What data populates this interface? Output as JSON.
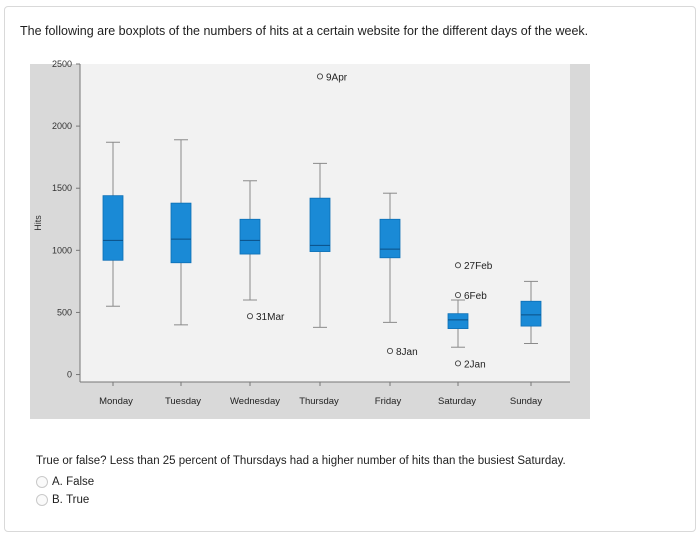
{
  "question": {
    "text": "The following are boxplots of the numbers of hits at a certain website for the different days of the week.",
    "prompt": "True or false? Less than 25 percent of Thursdays had a higher number of hits than the busiest Saturday.",
    "options": [
      {
        "letter": "A.",
        "label": "False"
      },
      {
        "letter": "B.",
        "label": "True"
      }
    ]
  },
  "chart_data": {
    "type": "boxplot",
    "ylabel": "Hits",
    "xlabel": "",
    "ylim": [
      -60,
      2500
    ],
    "yticks": [
      0,
      500,
      1000,
      1500,
      2000,
      2500
    ],
    "ytick_labels": [
      "0",
      "500",
      "1000",
      "1500",
      "2000",
      "2500"
    ],
    "categories": [
      "Monday",
      "Tuesday",
      "Wednesday",
      "Thursday",
      "Friday",
      "Saturday",
      "Sunday"
    ],
    "boxes": [
      {
        "day": "Monday",
        "whisker_low": 550,
        "q1": 920,
        "median": 1080,
        "q3": 1440,
        "whisker_high": 1870
      },
      {
        "day": "Tuesday",
        "whisker_low": 400,
        "q1": 900,
        "median": 1090,
        "q3": 1380,
        "whisker_high": 1890
      },
      {
        "day": "Wednesday",
        "whisker_low": 600,
        "q1": 970,
        "median": 1080,
        "q3": 1250,
        "whisker_high": 1560
      },
      {
        "day": "Thursday",
        "whisker_low": 380,
        "q1": 990,
        "median": 1040,
        "q3": 1420,
        "whisker_high": 1700
      },
      {
        "day": "Friday",
        "whisker_low": 420,
        "q1": 940,
        "median": 1010,
        "q3": 1250,
        "whisker_high": 1460
      },
      {
        "day": "Saturday",
        "whisker_low": 220,
        "q1": 370,
        "median": 440,
        "q3": 490,
        "whisker_high": 600
      },
      {
        "day": "Sunday",
        "whisker_low": 250,
        "q1": 390,
        "median": 480,
        "q3": 590,
        "whisker_high": 750
      }
    ],
    "outliers": [
      {
        "day": "Wednesday",
        "value": 470,
        "label": "31Mar"
      },
      {
        "day": "Thursday",
        "value": 2400,
        "label": "9Apr"
      },
      {
        "day": "Friday",
        "value": 190,
        "label": "8Jan"
      },
      {
        "day": "Saturday",
        "value": 880,
        "label": "27Feb"
      },
      {
        "day": "Saturday",
        "value": 640,
        "label": "6Feb"
      },
      {
        "day": "Saturday",
        "value": 90,
        "label": "2Jan"
      }
    ],
    "colors": {
      "box_fill": "#1a8ad6",
      "plot_background": "#f2f2f2",
      "panel_background": "#d9d9d9",
      "whisker": "#8a8a8a"
    }
  }
}
